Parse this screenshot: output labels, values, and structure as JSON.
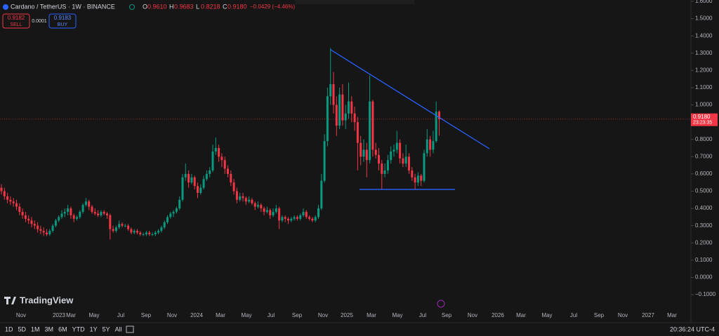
{
  "header": {
    "symbol": "Cardano / TetherUS · 1W · BINANCE",
    "ohlc": [
      {
        "key": "O",
        "value": "0.9610"
      },
      {
        "key": "H",
        "value": "0.9683"
      },
      {
        "key": "L",
        "value": "0.8218"
      },
      {
        "key": "C",
        "value": "0.9180"
      }
    ],
    "change": "−0.0429 (−4.46%)"
  },
  "trade": {
    "sell_price": "0.9182",
    "sell": "SELL",
    "spread": "0.0001",
    "buy_price": "0.9183",
    "buy": "BUY"
  },
  "chart_data": {
    "type": "candlestick",
    "up_color": "#089981",
    "down_color": "#f23645",
    "ylim": [
      -0.181,
      1.608
    ],
    "yticks": [
      {
        "value": 1.6,
        "label": "1.6000"
      },
      {
        "value": 1.5,
        "label": "1.5000"
      },
      {
        "value": 1.4,
        "label": "1.4000"
      },
      {
        "value": 1.3,
        "label": "1.3000"
      },
      {
        "value": 1.2,
        "label": "1.2000"
      },
      {
        "value": 1.1,
        "label": "1.1000"
      },
      {
        "value": 1,
        "label": "1.0000"
      },
      {
        "value": 0.9,
        "label": "0.9000"
      },
      {
        "value": 0.8,
        "label": "0.8000"
      },
      {
        "value": 0.7,
        "label": "0.7000"
      },
      {
        "value": 0.6,
        "label": "0.6000"
      },
      {
        "value": 0.5,
        "label": "0.5000"
      },
      {
        "value": 0.4,
        "label": "0.4000"
      },
      {
        "value": 0.3,
        "label": "0.3000"
      },
      {
        "value": 0.2,
        "label": "0.2000"
      },
      {
        "value": 0.1,
        "label": "0.1000"
      },
      {
        "value": 0,
        "label": "0.0000"
      },
      {
        "value": -0.1,
        "label": "−0.1000"
      }
    ],
    "xticks": [
      "Nov",
      "2023",
      "Mar",
      "May",
      "Jul",
      "Sep",
      "Nov",
      "2024",
      "Mar",
      "May",
      "Jul",
      "Sep",
      "Nov",
      "2025",
      "Mar",
      "May",
      "Jul",
      "Sep",
      "Nov",
      "2026",
      "Mar",
      "May",
      "Jul",
      "Sep",
      "Nov",
      "2027",
      "Mar"
    ],
    "last_price": {
      "value": 0.918,
      "label": "0.9180",
      "countdown": "23:23:35"
    },
    "drawings": [
      {
        "type": "trend-line",
        "color": "#2962ff",
        "points": [
          [
            109,
            1.32
          ],
          [
            161.6,
            0.746
          ]
        ]
      },
      {
        "type": "horizontal-segment",
        "color": "#2962ff",
        "points": [
          [
            118.6,
            0.51
          ],
          [
            150.2,
            0.51
          ]
        ]
      }
    ],
    "candles": [
      [
        0.52,
        0.54,
        0.48,
        0.5
      ],
      [
        0.5,
        0.52,
        0.45,
        0.47
      ],
      [
        0.47,
        0.49,
        0.43,
        0.45
      ],
      [
        0.45,
        0.47,
        0.42,
        0.44
      ],
      [
        0.44,
        0.46,
        0.41,
        0.43
      ],
      [
        0.43,
        0.45,
        0.39,
        0.41
      ],
      [
        0.41,
        0.43,
        0.36,
        0.38
      ],
      [
        0.38,
        0.4,
        0.34,
        0.36
      ],
      [
        0.36,
        0.38,
        0.32,
        0.34
      ],
      [
        0.34,
        0.36,
        0.31,
        0.33
      ],
      [
        0.33,
        0.35,
        0.29,
        0.31
      ],
      [
        0.31,
        0.33,
        0.28,
        0.3
      ],
      [
        0.3,
        0.32,
        0.26,
        0.28
      ],
      [
        0.28,
        0.3,
        0.25,
        0.27
      ],
      [
        0.27,
        0.29,
        0.24,
        0.26
      ],
      [
        0.26,
        0.28,
        0.24,
        0.25
      ],
      [
        0.25,
        0.28,
        0.24,
        0.27
      ],
      [
        0.27,
        0.31,
        0.26,
        0.3
      ],
      [
        0.3,
        0.34,
        0.29,
        0.33
      ],
      [
        0.33,
        0.36,
        0.32,
        0.35
      ],
      [
        0.35,
        0.39,
        0.34,
        0.37
      ],
      [
        0.37,
        0.4,
        0.35,
        0.38
      ],
      [
        0.38,
        0.42,
        0.36,
        0.4
      ],
      [
        0.4,
        0.41,
        0.34,
        0.36
      ],
      [
        0.36,
        0.37,
        0.32,
        0.34
      ],
      [
        0.34,
        0.36,
        0.33,
        0.35
      ],
      [
        0.35,
        0.39,
        0.34,
        0.38
      ],
      [
        0.38,
        0.43,
        0.37,
        0.42
      ],
      [
        0.42,
        0.46,
        0.41,
        0.44
      ],
      [
        0.44,
        0.45,
        0.39,
        0.41
      ],
      [
        0.41,
        0.42,
        0.37,
        0.38
      ],
      [
        0.38,
        0.4,
        0.36,
        0.37
      ],
      [
        0.37,
        0.39,
        0.35,
        0.36
      ],
      [
        0.36,
        0.39,
        0.35,
        0.38
      ],
      [
        0.38,
        0.39,
        0.36,
        0.37
      ],
      [
        0.37,
        0.38,
        0.34,
        0.36
      ],
      [
        0.36,
        0.37,
        0.22,
        0.28
      ],
      [
        0.28,
        0.3,
        0.26,
        0.27
      ],
      [
        0.27,
        0.3,
        0.26,
        0.29
      ],
      [
        0.29,
        0.33,
        0.28,
        0.31
      ],
      [
        0.31,
        0.32,
        0.29,
        0.3
      ],
      [
        0.3,
        0.31,
        0.29,
        0.3
      ],
      [
        0.3,
        0.31,
        0.27,
        0.28
      ],
      [
        0.28,
        0.29,
        0.25,
        0.26
      ],
      [
        0.26,
        0.28,
        0.25,
        0.27
      ],
      [
        0.27,
        0.28,
        0.25,
        0.26
      ],
      [
        0.26,
        0.27,
        0.24,
        0.25
      ],
      [
        0.25,
        0.26,
        0.24,
        0.25
      ],
      [
        0.25,
        0.27,
        0.24,
        0.26
      ],
      [
        0.26,
        0.27,
        0.24,
        0.25
      ],
      [
        0.25,
        0.26,
        0.24,
        0.25
      ],
      [
        0.25,
        0.27,
        0.24,
        0.26
      ],
      [
        0.26,
        0.28,
        0.25,
        0.27
      ],
      [
        0.27,
        0.3,
        0.26,
        0.29
      ],
      [
        0.29,
        0.33,
        0.28,
        0.32
      ],
      [
        0.32,
        0.36,
        0.31,
        0.35
      ],
      [
        0.35,
        0.38,
        0.34,
        0.37
      ],
      [
        0.37,
        0.39,
        0.35,
        0.38
      ],
      [
        0.38,
        0.41,
        0.37,
        0.4
      ],
      [
        0.4,
        0.47,
        0.39,
        0.45
      ],
      [
        0.45,
        0.6,
        0.44,
        0.58
      ],
      [
        0.58,
        0.66,
        0.56,
        0.6
      ],
      [
        0.6,
        0.62,
        0.52,
        0.55
      ],
      [
        0.55,
        0.6,
        0.54,
        0.58
      ],
      [
        0.58,
        0.59,
        0.51,
        0.53
      ],
      [
        0.53,
        0.55,
        0.46,
        0.49
      ],
      [
        0.49,
        0.54,
        0.48,
        0.52
      ],
      [
        0.52,
        0.59,
        0.51,
        0.57
      ],
      [
        0.57,
        0.62,
        0.56,
        0.6
      ],
      [
        0.6,
        0.64,
        0.58,
        0.62
      ],
      [
        0.62,
        0.77,
        0.61,
        0.73
      ],
      [
        0.73,
        0.81,
        0.71,
        0.75
      ],
      [
        0.75,
        0.77,
        0.67,
        0.7
      ],
      [
        0.7,
        0.72,
        0.64,
        0.68
      ],
      [
        0.68,
        0.7,
        0.6,
        0.63
      ],
      [
        0.63,
        0.65,
        0.58,
        0.6
      ],
      [
        0.6,
        0.62,
        0.53,
        0.55
      ],
      [
        0.55,
        0.57,
        0.48,
        0.5
      ],
      [
        0.5,
        0.52,
        0.43,
        0.45
      ],
      [
        0.45,
        0.49,
        0.44,
        0.47
      ],
      [
        0.47,
        0.49,
        0.44,
        0.46
      ],
      [
        0.46,
        0.47,
        0.42,
        0.44
      ],
      [
        0.44,
        0.47,
        0.43,
        0.45
      ],
      [
        0.45,
        0.46,
        0.42,
        0.43
      ],
      [
        0.43,
        0.44,
        0.39,
        0.41
      ],
      [
        0.41,
        0.44,
        0.4,
        0.42
      ],
      [
        0.42,
        0.43,
        0.38,
        0.4
      ],
      [
        0.4,
        0.41,
        0.36,
        0.38
      ],
      [
        0.38,
        0.41,
        0.37,
        0.39
      ],
      [
        0.39,
        0.4,
        0.34,
        0.36
      ],
      [
        0.36,
        0.4,
        0.35,
        0.38
      ],
      [
        0.38,
        0.42,
        0.37,
        0.4
      ],
      [
        0.4,
        0.41,
        0.28,
        0.33
      ],
      [
        0.33,
        0.36,
        0.32,
        0.35
      ],
      [
        0.35,
        0.36,
        0.32,
        0.34
      ],
      [
        0.34,
        0.35,
        0.31,
        0.33
      ],
      [
        0.33,
        0.35,
        0.32,
        0.34
      ],
      [
        0.34,
        0.36,
        0.33,
        0.35
      ],
      [
        0.35,
        0.36,
        0.33,
        0.34
      ],
      [
        0.34,
        0.37,
        0.33,
        0.36
      ],
      [
        0.36,
        0.4,
        0.35,
        0.38
      ],
      [
        0.38,
        0.39,
        0.34,
        0.35
      ],
      [
        0.35,
        0.36,
        0.33,
        0.34
      ],
      [
        0.34,
        0.35,
        0.32,
        0.33
      ],
      [
        0.33,
        0.36,
        0.32,
        0.35
      ],
      [
        0.35,
        0.42,
        0.34,
        0.4
      ],
      [
        0.4,
        0.6,
        0.39,
        0.56
      ],
      [
        0.56,
        0.83,
        0.55,
        0.79
      ],
      [
        0.79,
        1.1,
        0.76,
        1.05
      ],
      [
        1.05,
        1.33,
        1.0,
        1.12
      ],
      [
        1.12,
        1.19,
        0.95,
        1.0
      ],
      [
        1.0,
        1.05,
        0.82,
        0.88
      ],
      [
        0.88,
        1.1,
        0.86,
        1.06
      ],
      [
        1.06,
        1.12,
        0.88,
        0.91
      ],
      [
        0.91,
        1.0,
        0.86,
        0.95
      ],
      [
        0.95,
        1.13,
        0.92,
        1.02
      ],
      [
        1.02,
        1.05,
        0.9,
        0.95
      ],
      [
        0.95,
        0.99,
        0.85,
        0.9
      ],
      [
        0.9,
        0.93,
        0.62,
        0.78
      ],
      [
        0.78,
        0.82,
        0.65,
        0.7
      ],
      [
        0.7,
        0.8,
        0.67,
        0.74
      ],
      [
        0.74,
        0.78,
        0.58,
        0.68
      ],
      [
        0.68,
        1.17,
        0.66,
        1.02
      ],
      [
        1.02,
        1.03,
        0.7,
        0.74
      ],
      [
        0.74,
        0.78,
        0.69,
        0.71
      ],
      [
        0.71,
        0.75,
        0.62,
        0.66
      ],
      [
        0.66,
        0.68,
        0.51,
        0.6
      ],
      [
        0.6,
        0.66,
        0.58,
        0.62
      ],
      [
        0.62,
        0.71,
        0.6,
        0.68
      ],
      [
        0.68,
        0.76,
        0.66,
        0.73
      ],
      [
        0.73,
        0.77,
        0.7,
        0.74
      ],
      [
        0.74,
        0.85,
        0.72,
        0.78
      ],
      [
        0.78,
        0.8,
        0.66,
        0.69
      ],
      [
        0.69,
        0.72,
        0.64,
        0.66
      ],
      [
        0.66,
        0.77,
        0.64,
        0.7
      ],
      [
        0.7,
        0.72,
        0.6,
        0.62
      ],
      [
        0.62,
        0.64,
        0.56,
        0.58
      ],
      [
        0.58,
        0.6,
        0.51,
        0.55
      ],
      [
        0.55,
        0.61,
        0.53,
        0.59
      ],
      [
        0.59,
        0.6,
        0.53,
        0.56
      ],
      [
        0.56,
        0.74,
        0.55,
        0.72
      ],
      [
        0.72,
        0.86,
        0.7,
        0.8
      ],
      [
        0.8,
        0.82,
        0.7,
        0.74
      ],
      [
        0.74,
        0.85,
        0.72,
        0.79
      ],
      [
        0.79,
        1.02,
        0.78,
        0.961
      ],
      [
        0.961,
        0.9683,
        0.8218,
        0.918
      ]
    ]
  },
  "brand": "TradingView",
  "toolbar": {
    "ranges": [
      "1D",
      "5D",
      "1M",
      "3M",
      "6M",
      "YTD",
      "1Y",
      "5Y",
      "All"
    ],
    "clock": "20:36:24 UTC-4"
  }
}
